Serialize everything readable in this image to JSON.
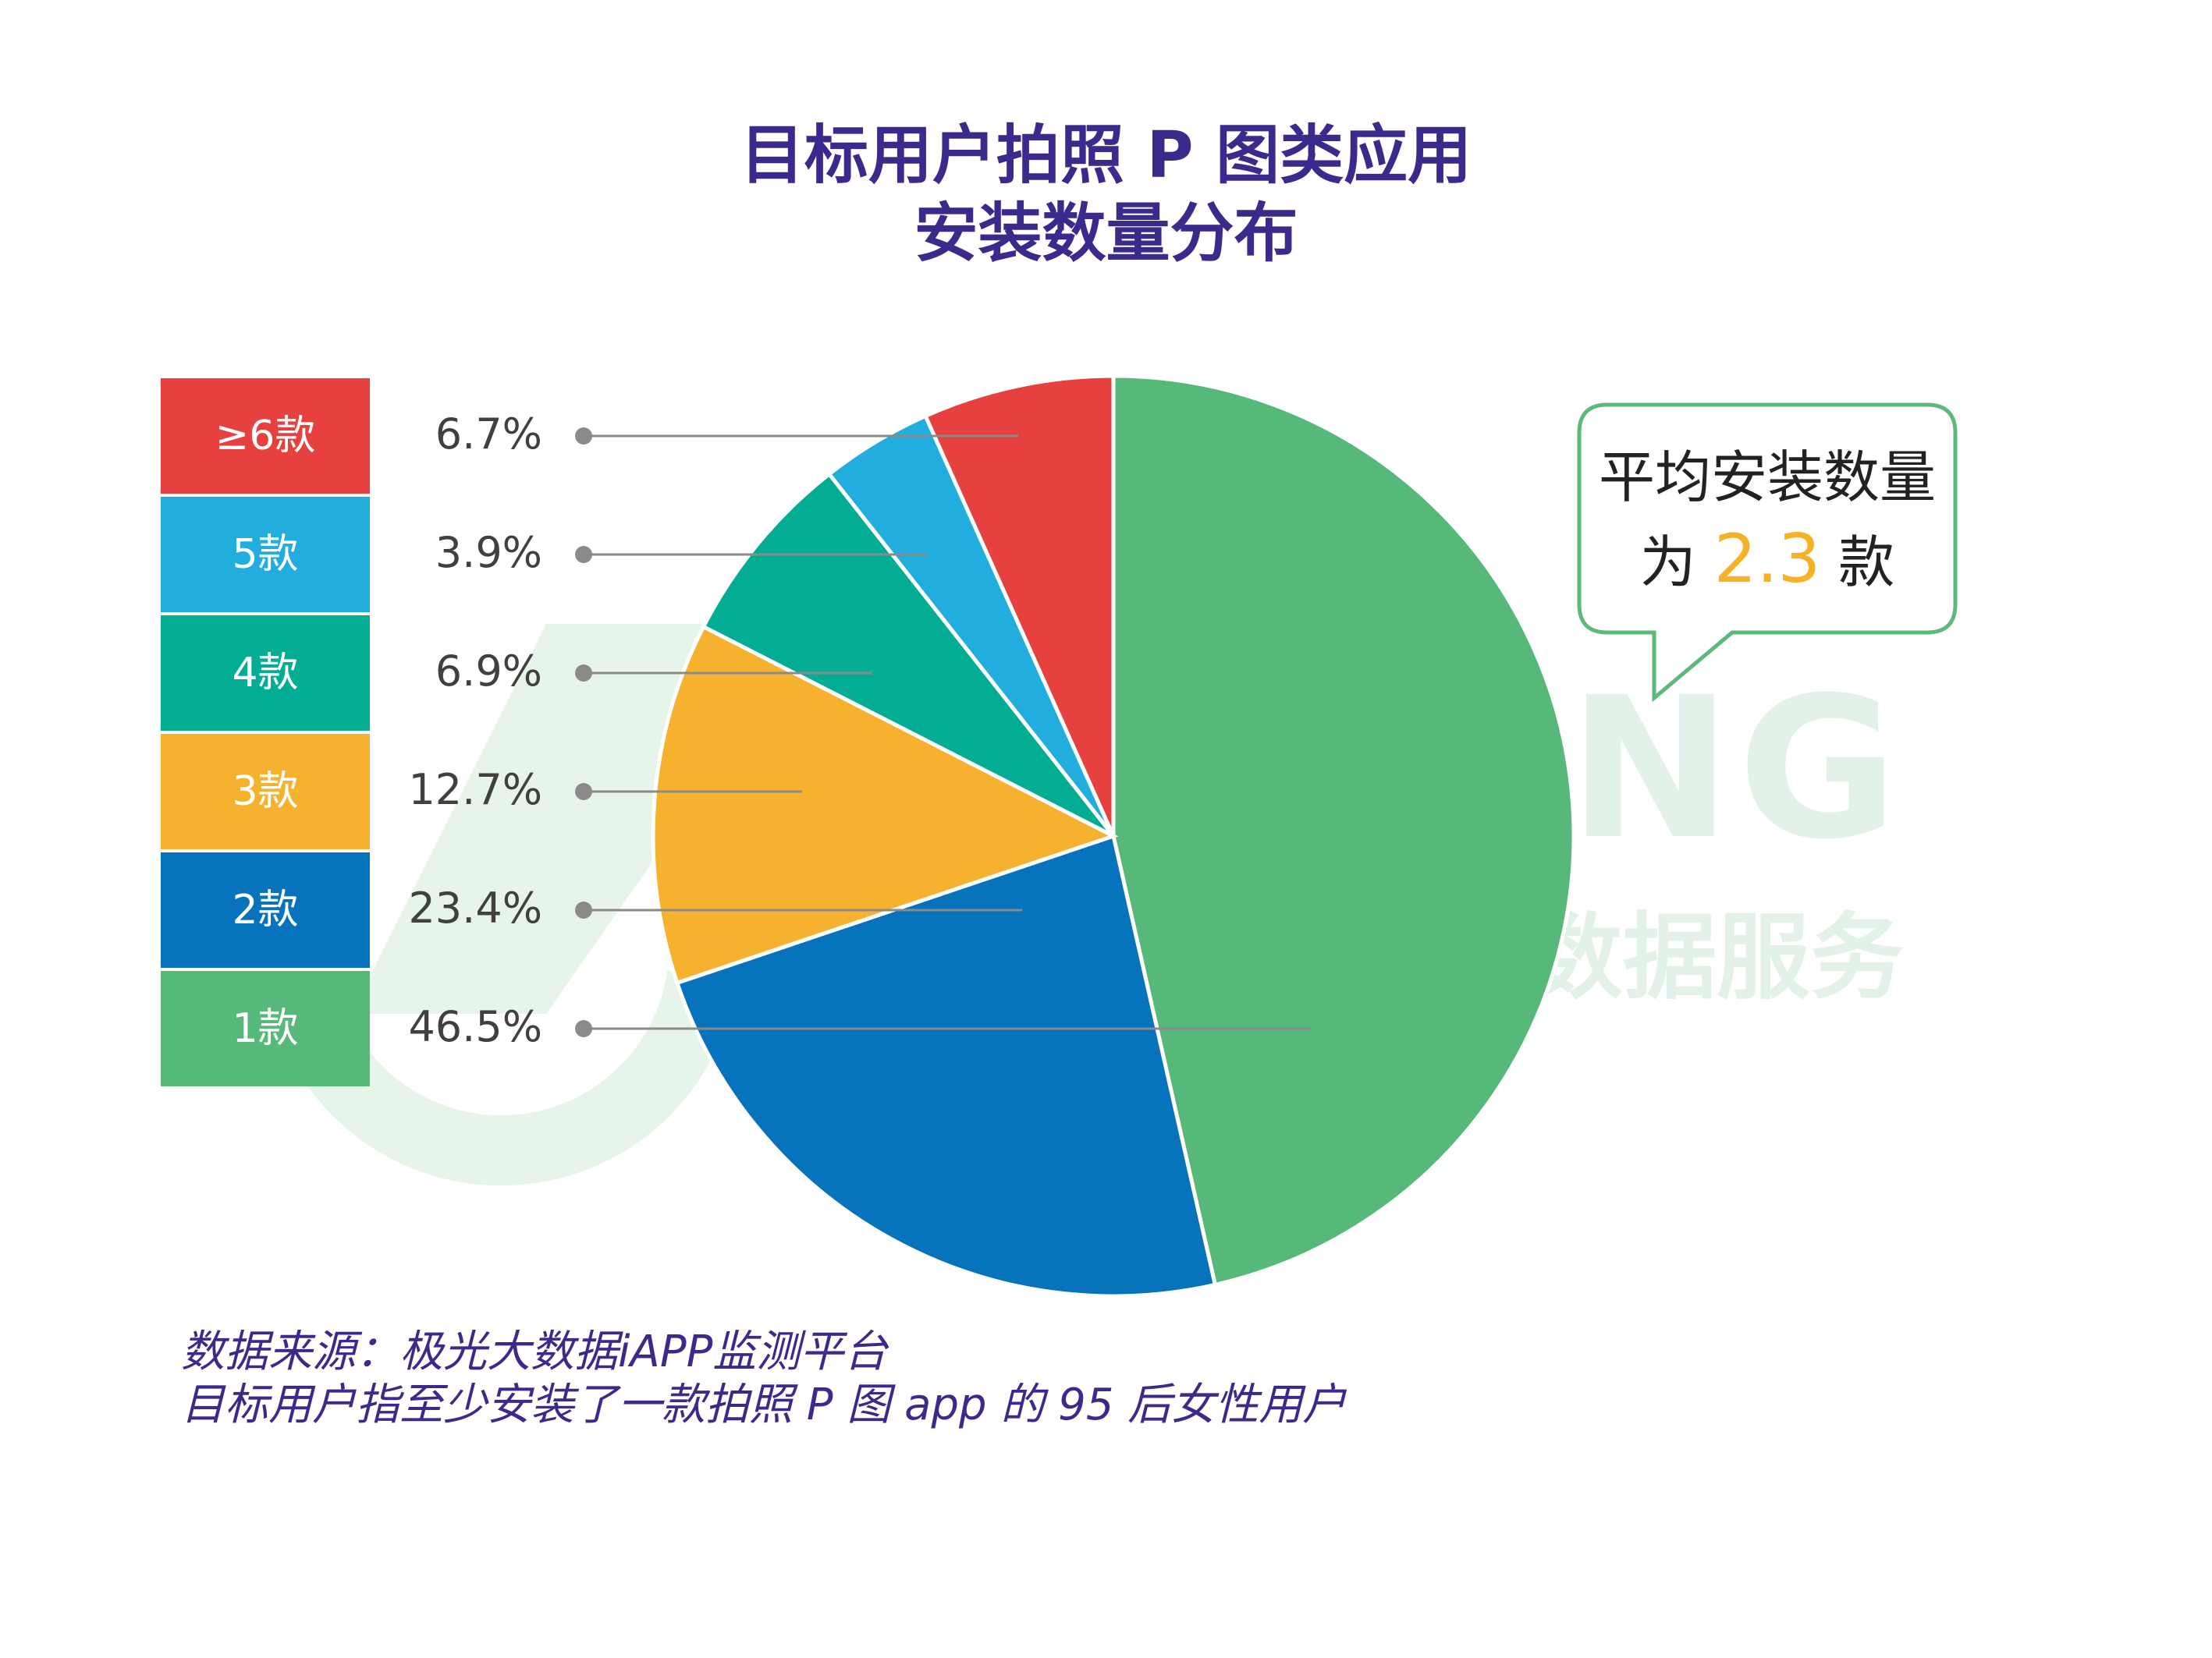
{
  "title_line1": "目标用户拍照 P 图类应用",
  "title_line2": "安装数量分布",
  "watermark_en": "JIGUANG",
  "watermark_cn": "数据服务",
  "callout": {
    "line1": "平均安装数量",
    "prefix": "为 ",
    "value": "2.3",
    "suffix": " 款"
  },
  "footnote": {
    "line1": "数据来源：极光大数据iAPP监测平台",
    "line2": "目标用户指至少安装了一款拍照 P 图 app 的 95 后女性用户"
  },
  "colors": {
    "title": "#3b2a8c",
    "highlight": "#f6b226",
    "callout_border": "#5cb97a"
  },
  "chart_data": {
    "type": "pie",
    "start": "12 o'clock, clockwise",
    "slices": [
      {
        "label": "1款",
        "value": 46.5,
        "pct": "46.5%",
        "color": "#57b979"
      },
      {
        "label": "2款",
        "value": 23.4,
        "pct": "23.4%",
        "color": "#0873bd"
      },
      {
        "label": "3款",
        "value": 12.7,
        "pct": "12.7%",
        "color": "#f6b22e"
      },
      {
        "label": "4款",
        "value": 6.9,
        "pct": "6.9%",
        "color": "#03ad93"
      },
      {
        "label": "5款",
        "value": 3.9,
        "pct": "3.9%",
        "color": "#22addf"
      },
      {
        "label": "≥6款",
        "value": 6.7,
        "pct": "6.7%",
        "color": "#e7413f"
      }
    ]
  }
}
